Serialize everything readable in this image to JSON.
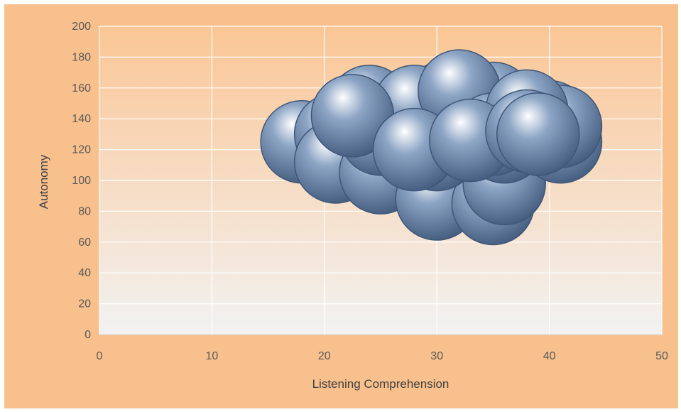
{
  "colors": {
    "outer_background": "#F8C08C",
    "plot_gradient_top": "#FBC695",
    "plot_gradient_bottom": "#F2F2F2",
    "gridline": "#FFFFFF",
    "bubble_base": "#8EA6C6",
    "bubble_edge": "#3E5678",
    "bubble_highlight": "#FFFFFF"
  },
  "chart_data": {
    "type": "bubble",
    "title": "",
    "xlabel": "Listening Comprehension",
    "ylabel": "Autonomy",
    "xlim": [
      0,
      50
    ],
    "ylim": [
      0,
      200
    ],
    "x_ticks": [
      0,
      10,
      20,
      30,
      40,
      50
    ],
    "y_ticks": [
      0,
      20,
      40,
      60,
      80,
      100,
      120,
      140,
      160,
      180,
      200
    ],
    "grid": true,
    "legend": "none",
    "points": [
      {
        "x": 18,
        "y": 125
      },
      {
        "x": 21,
        "y": 130
      },
      {
        "x": 21,
        "y": 112
      },
      {
        "x": 25,
        "y": 105
      },
      {
        "x": 25,
        "y": 130
      },
      {
        "x": 24,
        "y": 148
      },
      {
        "x": 30,
        "y": 88
      },
      {
        "x": 35,
        "y": 85
      },
      {
        "x": 36,
        "y": 98
      },
      {
        "x": 30,
        "y": 120
      },
      {
        "x": 31,
        "y": 152
      },
      {
        "x": 28,
        "y": 148
      },
      {
        "x": 40,
        "y": 138
      },
      {
        "x": 41,
        "y": 125
      },
      {
        "x": 41,
        "y": 135
      },
      {
        "x": 35,
        "y": 150
      },
      {
        "x": 36,
        "y": 125
      },
      {
        "x": 22.5,
        "y": 142
      },
      {
        "x": 32,
        "y": 158
      },
      {
        "x": 35,
        "y": 130
      },
      {
        "x": 38,
        "y": 145
      },
      {
        "x": 28,
        "y": 120
      },
      {
        "x": 33,
        "y": 126
      },
      {
        "x": 38,
        "y": 132
      },
      {
        "x": 39,
        "y": 130
      }
    ],
    "bubble_size_equal": true
  }
}
